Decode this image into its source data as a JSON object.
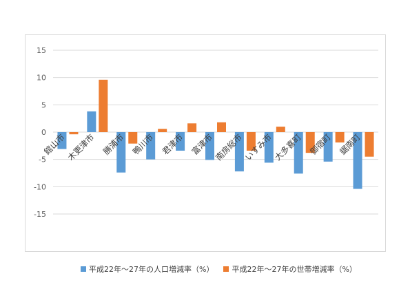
{
  "chart_data": {
    "type": "bar",
    "categories": [
      "館山市",
      "木更津市",
      "勝浦市",
      "鴨川市",
      "君津市",
      "富津市",
      "南房総市",
      "いすみ市",
      "大多喜町",
      "御宿町",
      "鋸南町"
    ],
    "series": [
      {
        "name": "平成22年～27年の人口増減率（%）",
        "color": "#5b9bd5",
        "values": [
          -3.1,
          3.8,
          -7.4,
          -5.0,
          -3.4,
          -5.1,
          -7.2,
          -5.6,
          -7.6,
          -5.4,
          -10.4
        ]
      },
      {
        "name": "平成22年～27年の世帯増減率（%）",
        "color": "#ed7d31",
        "values": [
          -0.4,
          9.6,
          -2.1,
          0.6,
          1.6,
          1.8,
          -3.4,
          1.0,
          -3.8,
          -1.9,
          -4.5
        ]
      }
    ],
    "y_ticks": [
      15,
      10,
      5,
      0,
      -5,
      -10,
      -15
    ],
    "ylim": [
      -15,
      15
    ],
    "grid": true,
    "legend_position": "bottom"
  }
}
